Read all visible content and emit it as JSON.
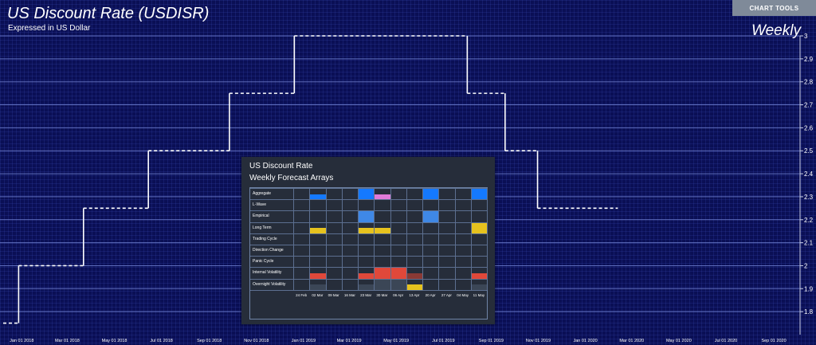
{
  "header": {
    "title": "US Discount Rate (USDISR)",
    "subtitle": "Expressed in US Dollar",
    "frequency": "Weekly",
    "chart_tools_label": "CHART TOOLS"
  },
  "colors": {
    "background": "#0a0f55",
    "gridline": "#6e7fd0",
    "line": "#ffffff",
    "blue": "#1479ff",
    "light_blue": "#3f88e6",
    "pink": "#e07ad8",
    "yellow": "#e6c21e",
    "red": "#e0483a",
    "dark_red": "#8a3a35",
    "slate": "#3b4656"
  },
  "chart_data": [
    {
      "type": "line",
      "title": "US Discount Rate (USDISR)",
      "subtitle": "Expressed in US Dollar",
      "xlabel": "",
      "ylabel": "",
      "ylim": [
        1.7,
        3.0
      ],
      "xlim": [
        "2017-12-08",
        "2020-10-05"
      ],
      "y_ticks": [
        1.8,
        1.9,
        2.0,
        2.1,
        2.2,
        2.3,
        2.4,
        2.5,
        2.6,
        2.7,
        2.8,
        2.9,
        3.0
      ],
      "y_tick_labels": [
        "1.8",
        "1.9",
        "2",
        "2.1",
        "2.2",
        "2.3",
        "2.4",
        "2.5",
        "2.6",
        "2.7",
        "2.8",
        "2.9",
        "3"
      ],
      "x_ticks": [
        "2018-01-01",
        "2018-03-01",
        "2018-05-01",
        "2018-07-01",
        "2018-09-01",
        "2018-11-01",
        "2019-01-01",
        "2019-03-01",
        "2019-05-01",
        "2019-07-01",
        "2019-09-01",
        "2019-11-01",
        "2020-01-01",
        "2020-03-01",
        "2020-05-01",
        "2020-07-01",
        "2020-09-01"
      ],
      "x_tick_labels": [
        "Jan 01 2018",
        "Mar 01 2018",
        "May 01 2018",
        "Jul 01 2018",
        "Sep 01 2018",
        "Nov 01 2018",
        "Jan 01 2019",
        "Mar 01 2019",
        "May 01 2019",
        "Jul 01 2019",
        "Sep 01 2019",
        "Nov 01 2019",
        "Jan 01 2020",
        "Mar 01 2020",
        "May 01 2020",
        "Jul 01 2020",
        "Sep 01 2020"
      ],
      "grid": true,
      "series": [
        {
          "steps": [
            {
              "start": "2017-12-08",
              "end": "2017-12-28",
              "value": 1.75
            },
            {
              "start": "2017-12-28",
              "end": "2018-03-22",
              "value": 2.0
            },
            {
              "start": "2018-03-22",
              "end": "2018-06-14",
              "value": 2.25
            },
            {
              "start": "2018-06-14",
              "end": "2018-09-27",
              "value": 2.5
            },
            {
              "start": "2018-09-27",
              "end": "2018-12-20",
              "value": 2.75
            },
            {
              "start": "2018-12-20",
              "end": "2019-08-01",
              "value": 3.0
            },
            {
              "start": "2019-08-01",
              "end": "2019-09-19",
              "value": 2.75
            },
            {
              "start": "2019-09-19",
              "end": "2019-10-31",
              "value": 2.5
            },
            {
              "start": "2019-10-31",
              "end": "2020-02-12",
              "value": 2.25
            }
          ]
        }
      ]
    },
    {
      "type": "heatmap",
      "title": "US Discount Rate",
      "subtitle": "Weekly Forecast Arrays",
      "rows": [
        "Aggregate",
        "L-Wave",
        "Empirical",
        "Long Term",
        "Trading Cycle",
        "Direction Change",
        "Panic Cycle",
        "Internal Volatility",
        "Overnight Volatility"
      ],
      "columns": [
        "24 Feb",
        "02 Mar",
        "09 Mar",
        "16 Mar",
        "23 Mar",
        "30 Mar",
        "06 Apr",
        "13 Apr",
        "20 Apr",
        "27 Apr",
        "04 May",
        "11 May"
      ],
      "cells": [
        {
          "row": 0,
          "col": 1,
          "color": "blue",
          "level": 0.45
        },
        {
          "row": 0,
          "col": 4,
          "color": "blue",
          "level": 1.0
        },
        {
          "row": 0,
          "col": 5,
          "color": "pink",
          "level": 0.45
        },
        {
          "row": 0,
          "col": 8,
          "color": "blue",
          "level": 1.0
        },
        {
          "row": 0,
          "col": 11,
          "color": "blue",
          "level": 1.0
        },
        {
          "row": 2,
          "col": 4,
          "color": "light_blue",
          "level": 1.0
        },
        {
          "row": 2,
          "col": 8,
          "color": "light_blue",
          "level": 1.0
        },
        {
          "row": 3,
          "col": 1,
          "color": "yellow",
          "level": 0.45
        },
        {
          "row": 3,
          "col": 4,
          "color": "yellow",
          "level": 0.45
        },
        {
          "row": 3,
          "col": 5,
          "color": "yellow",
          "level": 0.45
        },
        {
          "row": 3,
          "col": 11,
          "color": "yellow",
          "level": 1.0
        },
        {
          "row": 7,
          "col": 1,
          "color": "red",
          "level": 0.5
        },
        {
          "row": 7,
          "col": 4,
          "color": "red",
          "level": 0.5
        },
        {
          "row": 7,
          "col": 5,
          "color": "red",
          "level": 1.0
        },
        {
          "row": 7,
          "col": 6,
          "color": "red",
          "level": 1.0
        },
        {
          "row": 7,
          "col": 7,
          "color": "dark_red",
          "level": 0.5
        },
        {
          "row": 7,
          "col": 11,
          "color": "red",
          "level": 0.5
        },
        {
          "row": 8,
          "col": 1,
          "color": "slate",
          "level": 0.45
        },
        {
          "row": 8,
          "col": 4,
          "color": "slate",
          "level": 0.45
        },
        {
          "row": 8,
          "col": 5,
          "color": "slate",
          "level": 1.0
        },
        {
          "row": 8,
          "col": 6,
          "color": "slate",
          "level": 1.0
        },
        {
          "row": 8,
          "col": 7,
          "color": "yellow",
          "level": 0.45
        },
        {
          "row": 8,
          "col": 11,
          "color": "slate",
          "level": 0.45
        }
      ]
    }
  ]
}
